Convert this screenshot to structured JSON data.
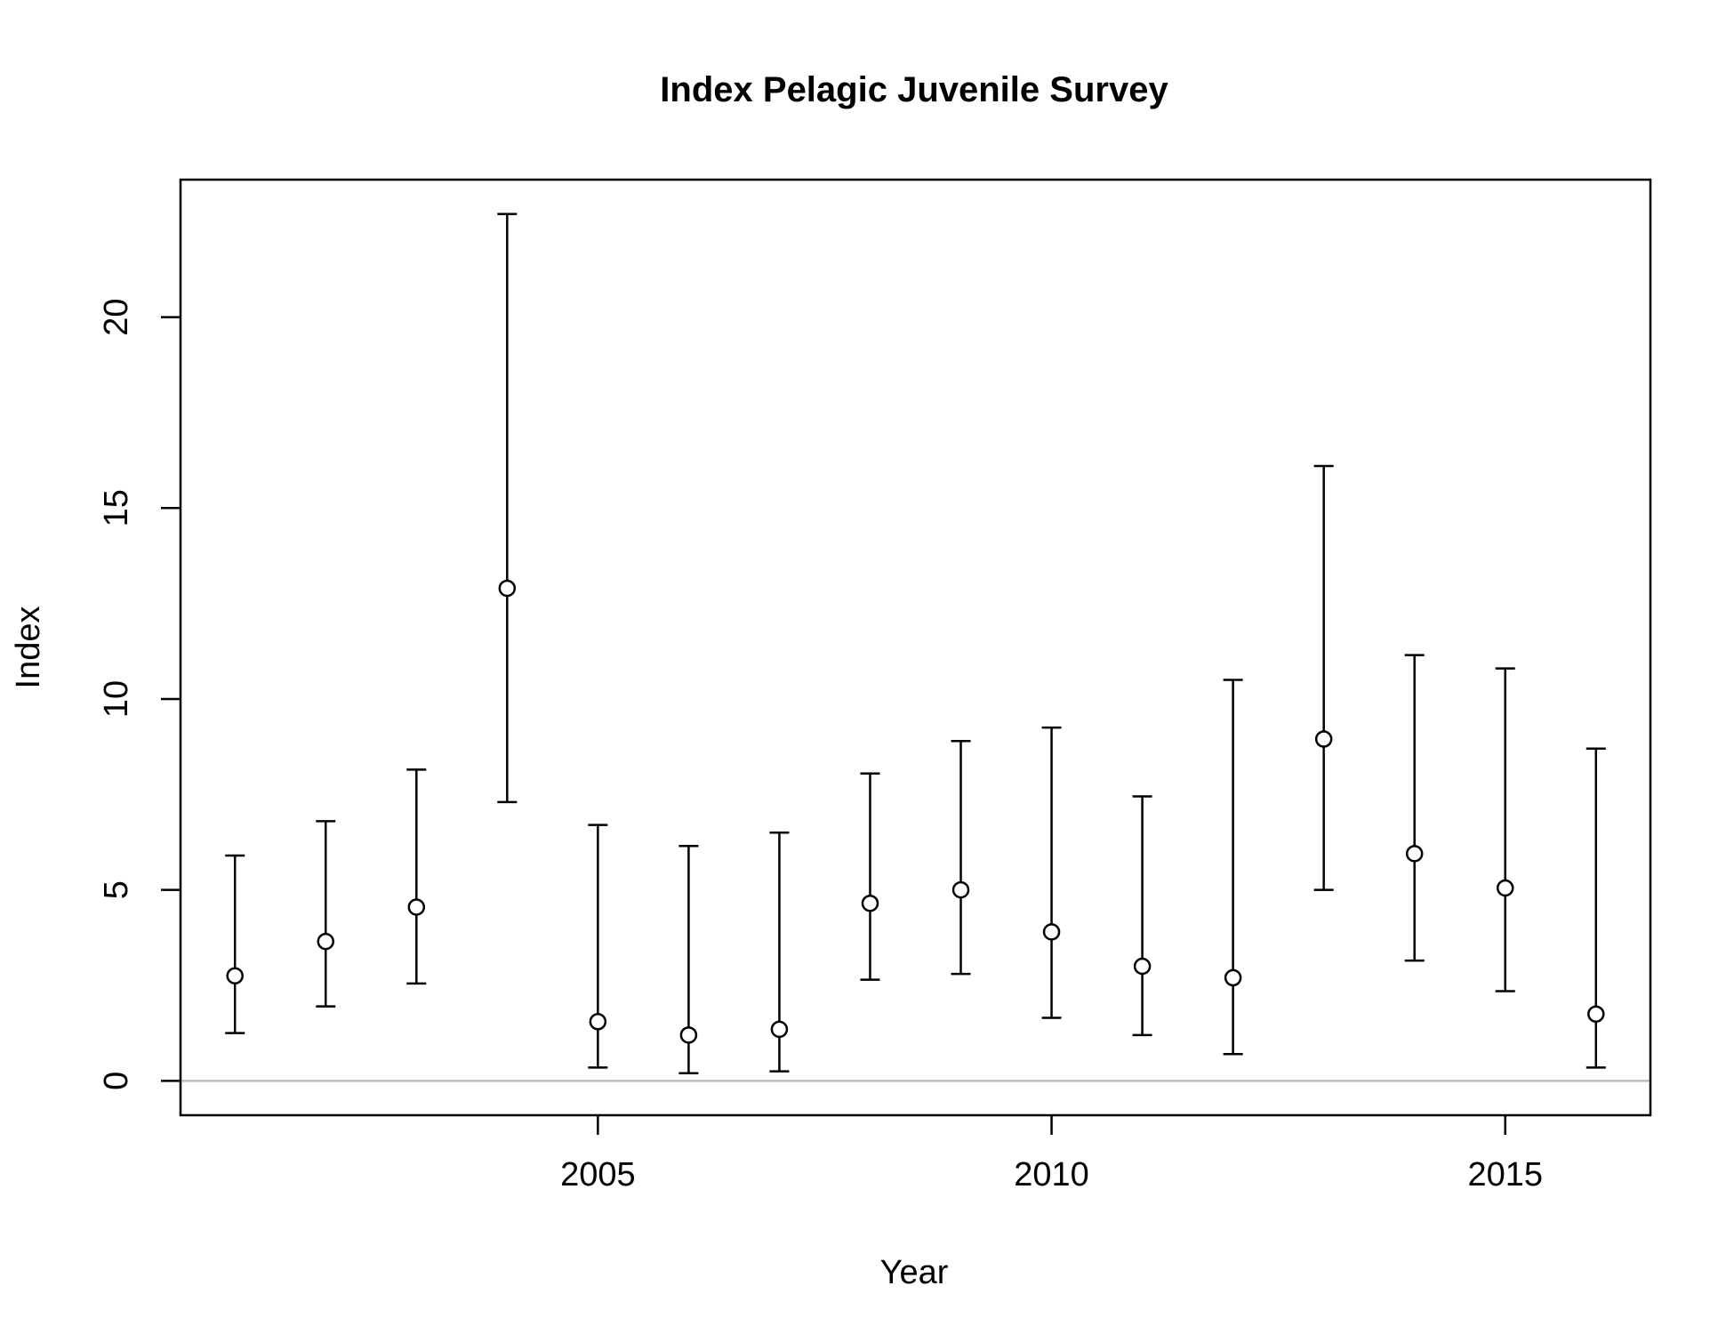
{
  "chart_data": {
    "type": "scatter",
    "title": "Index Pelagic Juvenile Survey",
    "xlabel": "Year",
    "ylabel": "Index",
    "xlim": [
      2000.4,
      2016.6
    ],
    "ylim": [
      -0.9,
      23.6
    ],
    "x_ticks": [
      2005,
      2010,
      2015
    ],
    "y_ticks": [
      0,
      5,
      10,
      15,
      20
    ],
    "reference_line": {
      "y": 0,
      "color": "#bebebe"
    },
    "grid": false,
    "marker": "open-circle",
    "series": [
      {
        "points": [
          {
            "x": 2001,
            "y": 2.75,
            "lo": 1.25,
            "hi": 5.9
          },
          {
            "x": 2002,
            "y": 3.65,
            "lo": 1.95,
            "hi": 6.8
          },
          {
            "x": 2003,
            "y": 4.55,
            "lo": 2.55,
            "hi": 8.15
          },
          {
            "x": 2004,
            "y": 12.9,
            "lo": 7.3,
            "hi": 22.7
          },
          {
            "x": 2005,
            "y": 1.55,
            "lo": 0.35,
            "hi": 6.7
          },
          {
            "x": 2006,
            "y": 1.2,
            "lo": 0.2,
            "hi": 6.15
          },
          {
            "x": 2007,
            "y": 1.35,
            "lo": 0.25,
            "hi": 6.5
          },
          {
            "x": 2008,
            "y": 4.65,
            "lo": 2.65,
            "hi": 8.05
          },
          {
            "x": 2009,
            "y": 5.0,
            "lo": 2.8,
            "hi": 8.9
          },
          {
            "x": 2010,
            "y": 3.9,
            "lo": 1.65,
            "hi": 9.25
          },
          {
            "x": 2011,
            "y": 3.0,
            "lo": 1.2,
            "hi": 7.45
          },
          {
            "x": 2012,
            "y": 2.7,
            "lo": 0.7,
            "hi": 10.5
          },
          {
            "x": 2013,
            "y": 8.95,
            "lo": 5.0,
            "hi": 16.1
          },
          {
            "x": 2014,
            "y": 5.95,
            "lo": 3.15,
            "hi": 11.15
          },
          {
            "x": 2015,
            "y": 5.05,
            "lo": 2.35,
            "hi": 10.8
          },
          {
            "x": 2016,
            "y": 1.75,
            "lo": 0.35,
            "hi": 8.7
          }
        ]
      }
    ]
  }
}
